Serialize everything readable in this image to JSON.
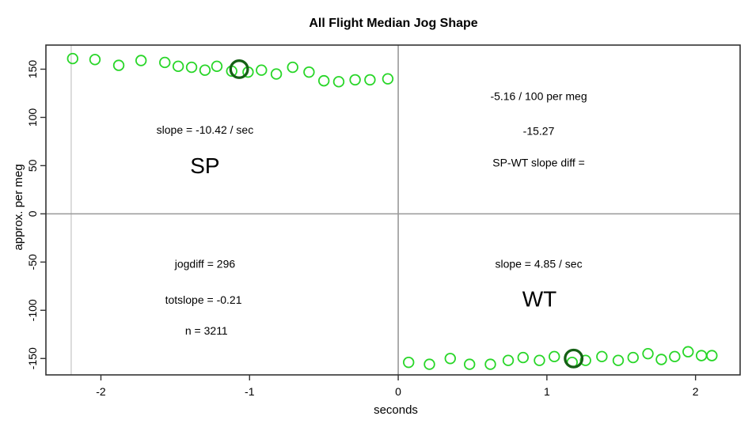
{
  "title": "All Flight Median Jog Shape",
  "chart_data": {
    "type": "scatter",
    "title": "All Flight Median Jog Shape",
    "xlabel": "seconds",
    "ylabel": "approx. per meg",
    "xlim": [
      -2.37,
      2.3
    ],
    "ylim": [
      -167,
      175
    ],
    "x_ticks": [
      -2,
      -1,
      0,
      1,
      2
    ],
    "y_ticks": [
      -150,
      -100,
      -50,
      0,
      50,
      100,
      150
    ],
    "grid": false,
    "legend": "none",
    "point_color": "#28d628",
    "highlight_color": "#156015",
    "axis_color": "#333333",
    "refline_color": "#999999",
    "edge_line_color": "#cccccc",
    "reference_lines": {
      "vertical_x": 0,
      "horizontal_y": 0,
      "light_vertical_x": -2.2
    },
    "series": [
      {
        "name": "SP",
        "marker": "open-circle",
        "points": [
          [
            -2.19,
            161
          ],
          [
            -2.04,
            160
          ],
          [
            -1.88,
            154
          ],
          [
            -1.73,
            159
          ],
          [
            -1.57,
            157
          ],
          [
            -1.48,
            153
          ],
          [
            -1.39,
            152
          ],
          [
            -1.3,
            149
          ],
          [
            -1.22,
            153
          ],
          [
            -1.12,
            148
          ],
          [
            -1.01,
            147
          ],
          [
            -0.92,
            149
          ],
          [
            -0.82,
            145
          ],
          [
            -0.71,
            152
          ],
          [
            -0.6,
            147
          ],
          [
            -0.5,
            138
          ],
          [
            -0.4,
            137
          ],
          [
            -0.29,
            139
          ],
          [
            -0.19,
            139
          ],
          [
            -0.07,
            140
          ]
        ]
      },
      {
        "name": "WT",
        "marker": "open-circle",
        "points": [
          [
            0.07,
            -154
          ],
          [
            0.21,
            -156
          ],
          [
            0.35,
            -150
          ],
          [
            0.48,
            -156
          ],
          [
            0.62,
            -156
          ],
          [
            0.74,
            -152
          ],
          [
            0.84,
            -149
          ],
          [
            0.95,
            -152
          ],
          [
            1.05,
            -148
          ],
          [
            1.17,
            -154
          ],
          [
            1.26,
            -152
          ],
          [
            1.37,
            -148
          ],
          [
            1.48,
            -152
          ],
          [
            1.58,
            -149
          ],
          [
            1.68,
            -145
          ],
          [
            1.77,
            -151
          ],
          [
            1.86,
            -148
          ],
          [
            1.95,
            -143
          ],
          [
            2.04,
            -147
          ],
          [
            2.11,
            -147
          ]
        ]
      }
    ],
    "highlight_points": [
      {
        "series": "SP",
        "x": -1.07,
        "y": 150
      },
      {
        "series": "WT",
        "x": 1.18,
        "y": -150
      }
    ],
    "annotations": [
      {
        "id": "sp-slope",
        "text": "slope = -10.42 / sec",
        "x": -1.3,
        "y": 87,
        "size": 14
      },
      {
        "id": "sp-label",
        "text": "SP",
        "x": -1.3,
        "y": 50,
        "size": 28
      },
      {
        "id": "diff-line1",
        "text": "-5.16 / 100 per meg",
        "x": 0.945,
        "y": 122,
        "size": 14
      },
      {
        "id": "diff-line2",
        "text": "-15.27",
        "x": 0.945,
        "y": 86,
        "size": 14
      },
      {
        "id": "diff-line3",
        "text": "SP-WT slope diff =",
        "x": 0.945,
        "y": 53,
        "size": 14
      },
      {
        "id": "jogdiff",
        "text": "jogdiff = 296",
        "x": -1.3,
        "y": -52,
        "size": 14
      },
      {
        "id": "totslope",
        "text": "totslope = -0.21",
        "x": -1.31,
        "y": -89,
        "size": 14
      },
      {
        "id": "n-count",
        "text": "n = 3211",
        "x": -1.29,
        "y": -121,
        "size": 14
      },
      {
        "id": "wt-slope",
        "text": "slope = 4.85 / sec",
        "x": 0.945,
        "y": -52,
        "size": 14
      },
      {
        "id": "wt-label",
        "text": "WT",
        "x": 0.95,
        "y": -88,
        "size": 28
      }
    ]
  }
}
